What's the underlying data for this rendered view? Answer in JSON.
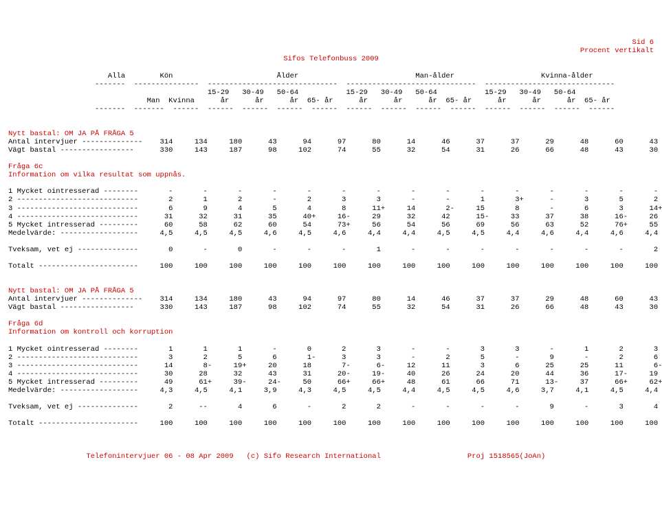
{
  "page_header_right_line1": "Sid 6",
  "page_header_right_line2": "Procent vertikalt",
  "title_center": "Sifos Telefonbuss 2009",
  "columns_group_line": "                       Alla        Kön                        Ålder                           Man-ålder                    Kvinna-ålder",
  "columns_subheader_line1": "                                              15-29   30-49   50-64           15-29   30-49   50-64           15-29   30-49   50-64",
  "columns_subheader_line2": "                                Man  Kvinna      år      år      år  65- år      år      år      år  65- år      år      år      år  65- år",
  "sep_group": "                    -------  ---------------  ------------------------------  ------------------------------  ------------------------------",
  "sep_cols": "                    -------  -------  ------  ------  ------  ------  ------  ------  ------  ------  ------  ------  ------  ------  ------",
  "block1": {
    "basetitle": "Nytt bastal: OM JA PÅ FRÅGA 5",
    "antal": "Antal intervjuer --------------    314     134     180      43      94      97      80      14      46      37      37      29      48      60      43",
    "vagt": "Vägt bastal -----------------      330     143     187      98     102      74      55      32      54      31      26      66      48      43      30",
    "fraga_label": "Fråga 6c",
    "fraga_text": "Information om vilka resultat som uppnås.",
    "rows": [
      "1 Mycket ointresserad --------       -       -       -       -       -       -       -       -       -       -       -       -       -       -       -",
      "2 ----------------------------       2       1       2       -       2       3       3       -       -       1       3+      -       3       5       2",
      "3 ----------------------------       6       9       4       5       4       8      11+     14       2-     15       8       -       6       3      14+",
      "4 ----------------------------      31      32      31      35      40+     16-     29      32      42      15-     33      37      38      16-     26",
      "5 Mycket intresserad ---------      60      58      62      60      54      73+     56      54      56      69      56      63      52      76+     55",
      "Medelvärde: ------------------     4,5     4,5     4,5     4,6     4,5     4,6     4,4     4,4     4,5     4,5     4,4     4,6     4,4     4,6     4,4"
    ],
    "tveksam": "Tveksam, vet ej --------------       0       -       0       -       -       -       1       -       -       -       -       -       -       -       2",
    "totalt": "Totalt -----------------------     100     100     100     100     100     100     100     100     100     100     100     100     100     100     100"
  },
  "block2": {
    "basetitle": "Nytt bastal: OM JA PÅ FRÅGA 5",
    "antal": "Antal intervjuer --------------    314     134     180      43      94      97      80      14      46      37      37      29      48      60      43",
    "vagt": "Vägt bastal -----------------      330     143     187      98     102      74      55      32      54      31      26      66      48      43      30",
    "fraga_label": "Fråga 6d",
    "fraga_text": "Information om kontroll och korruption",
    "rows": [
      "1 Mycket ointresserad --------       1       1       1       -       0       2       3       -       -       3       3       -       1       2       3",
      "2 ----------------------------       3       2       5       6       1-      3       3       -       2       5       -       9       -       2       6",
      "3 ----------------------------      14       8-     19+     20      18       7-      6-     12      11       3       6      25      25      11       6-",
      "4 ----------------------------      30      28      32      43      31      20-     19-     40      26      24      20      44      36      17-     19",
      "5 Mycket intresserad ---------      49      61+     39-     24-     50      66+     66+     48      61      66      71      13-     37      66+     62+",
      "Medelvärde: ------------------     4,3     4,5     4,1     3,9     4,3     4,5     4,5     4,4     4,5     4,5     4,6     3,7     4,1     4,5     4,4"
    ],
    "tveksam": "Tveksam, vet ej --------------       2      --       4       6       -       2       2       -       -       -       -       9       -       3       4",
    "totalt": "Totalt -----------------------     100     100     100     100     100     100     100     100     100     100     100     100     100     100     100"
  },
  "footer": "                  Telefonintervjuer 06 - 08 Apr 2009   (c) Sifo Research International                    Proj 1518565(JoAn)"
}
